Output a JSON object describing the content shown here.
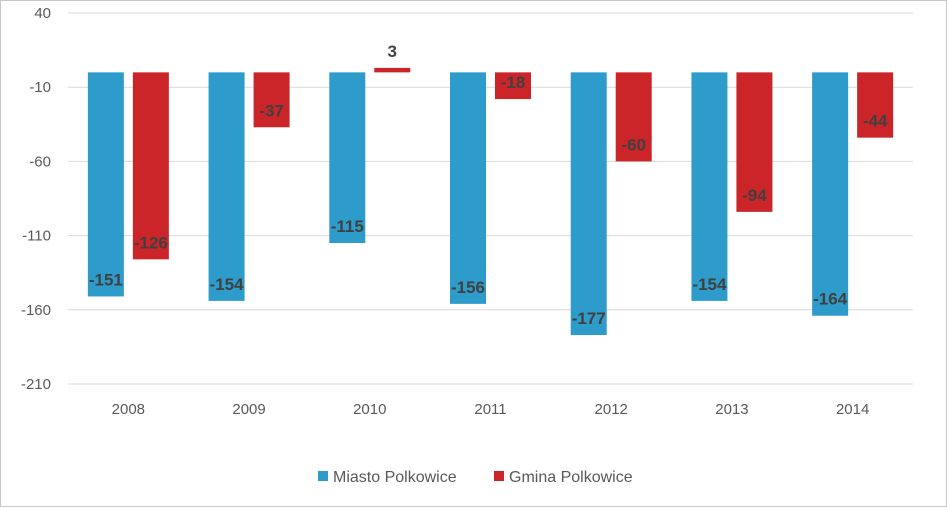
{
  "chart_data": {
    "type": "bar",
    "title": "",
    "xlabel": "",
    "ylabel": "",
    "categories": [
      "2008",
      "2009",
      "2010",
      "2011",
      "2012",
      "2013",
      "2014"
    ],
    "series": [
      {
        "name": "Miasto Polkowice",
        "color": "#2e9ccb",
        "values": [
          -151,
          -154,
          -115,
          -156,
          -177,
          -154,
          -164
        ]
      },
      {
        "name": "Gmina Polkowice",
        "color": "#cc2529",
        "values": [
          -126,
          -37,
          3,
          -18,
          -60,
          -94,
          -44
        ]
      }
    ],
    "ylim": [
      -210,
      40
    ],
    "yticks": [
      40,
      -10,
      -60,
      -110,
      -160,
      -210
    ],
    "grid": true,
    "legend_position": "bottom"
  }
}
